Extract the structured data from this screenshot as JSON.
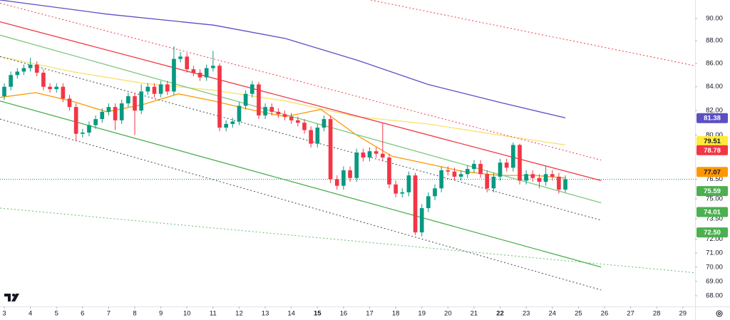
{
  "chart_data": {
    "type": "candlestick",
    "log": true,
    "up_color": "#089981",
    "down_color": "#f23645",
    "xlim": [
      2.836,
      29.47
    ],
    "ylim": [
      67.27,
      91.7
    ],
    "xticks": [
      3,
      4,
      5,
      6,
      7,
      8,
      9,
      10,
      11,
      12,
      13,
      14,
      15,
      16,
      17,
      18,
      19,
      20,
      21,
      22,
      23,
      24,
      25,
      26,
      27,
      28,
      29
    ],
    "xticks_bold": [
      15,
      22
    ],
    "yticks": [
      {
        "value": 90,
        "label": "90.00"
      },
      {
        "value": 88,
        "label": "88.00"
      },
      {
        "value": 86,
        "label": "86.00"
      },
      {
        "value": 84,
        "label": "84.00"
      },
      {
        "value": 82,
        "label": "82.00"
      },
      {
        "value": 80,
        "label": "80.00"
      },
      {
        "value": 76.5,
        "label": "76.50"
      },
      {
        "value": 75,
        "label": "75.00"
      },
      {
        "value": 73.5,
        "label": "73.50"
      },
      {
        "value": 72,
        "label": "72.00"
      },
      {
        "value": 71,
        "label": "71.00"
      },
      {
        "value": 70,
        "label": "70.00"
      },
      {
        "value": 69,
        "label": "69.00"
      },
      {
        "value": 68,
        "label": "68.00"
      }
    ],
    "x": [
      3,
      3.25,
      3.5,
      3.75,
      4,
      4.25,
      4.5,
      4.75,
      5,
      5.25,
      5.5,
      5.75,
      6,
      6.25,
      6.5,
      6.75,
      7,
      7.25,
      7.5,
      7.75,
      8,
      8.25,
      8.5,
      8.75,
      9,
      9.25,
      9.5,
      9.75,
      10,
      10.25,
      10.5,
      10.75,
      11,
      11.25,
      11.5,
      11.75,
      12,
      12.25,
      12.5,
      12.75,
      13,
      13.25,
      13.5,
      13.75,
      14,
      14.25,
      14.5,
      14.75,
      15,
      15.25,
      15.5,
      15.75,
      16,
      16.25,
      16.5,
      16.75,
      17,
      17.25,
      17.5,
      17.75,
      18,
      18.25,
      18.5,
      18.75,
      19,
      19.25,
      19.5,
      19.75,
      20,
      20.25,
      20.5,
      20.75,
      21,
      21.25,
      21.5,
      21.75,
      22,
      22.25,
      22.5,
      22.75,
      23,
      23.25,
      23.5,
      23.75,
      24,
      24.25,
      24.5
    ],
    "open": [
      83.2,
      84.0,
      85.0,
      85.3,
      85.6,
      85.9,
      85.2,
      84.0,
      83.8,
      84.0,
      83.0,
      82.3,
      80.1,
      80.2,
      80.8,
      81.3,
      81.9,
      82.3,
      81.2,
      82.6,
      83.2,
      82.0,
      83.6,
      84.0,
      83.4,
      84.2,
      83.6,
      86.4,
      86.6,
      85.5,
      85.2,
      84.8,
      85.6,
      85.8,
      80.6,
      80.9,
      81.1,
      82.4,
      83.4,
      84.2,
      81.6,
      82.3,
      81.9,
      81.7,
      81.5,
      81.2,
      81.0,
      80.4,
      79.3,
      80.6,
      81.3,
      76.5,
      76.0,
      77.2,
      76.6,
      78.6,
      78.2,
      78.7,
      78.5,
      78.2,
      76.1,
      75.4,
      75.5,
      76.8,
      72.5,
      74.3,
      75.2,
      75.8,
      77.2,
      77.1,
      76.7,
      76.9,
      77.3,
      77.7,
      76.9,
      75.8,
      76.7,
      77.8,
      77.4,
      79.2,
      76.4,
      76.9,
      76.6,
      76.3,
      76.9,
      76.7,
      75.7
    ],
    "high": [
      84.3,
      85.3,
      85.6,
      85.9,
      86.5,
      86.2,
      85.5,
      84.3,
      84.3,
      84.3,
      83.3,
      82.6,
      80.5,
      81.1,
      81.6,
      82.2,
      82.6,
      82.6,
      82.9,
      83.5,
      83.5,
      84.2,
      84.3,
      84.3,
      84.5,
      84.5,
      87.5,
      87.0,
      86.9,
      85.8,
      85.5,
      85.9,
      87.1,
      86.0,
      81.2,
      81.4,
      82.7,
      83.7,
      84.5,
      84.4,
      82.6,
      82.6,
      82.2,
      82.0,
      81.8,
      81.5,
      81.3,
      80.7,
      80.9,
      81.6,
      81.6,
      76.8,
      77.5,
      77.5,
      78.9,
      78.9,
      79.0,
      79.0,
      81.0,
      78.5,
      76.4,
      75.8,
      77.1,
      77.0,
      74.6,
      75.5,
      76.1,
      77.5,
      77.5,
      77.4,
      77.2,
      77.6,
      78.0,
      78.0,
      77.2,
      77.0,
      78.1,
      78.1,
      79.4,
      79.3,
      77.2,
      77.2,
      76.9,
      77.5,
      77.2,
      77.0,
      76.8
    ],
    "low": [
      82.9,
      83.7,
      84.7,
      85.0,
      85.3,
      84.9,
      83.7,
      83.5,
      83.5,
      82.7,
      82.0,
      79.5,
      79.8,
      79.9,
      80.5,
      81.0,
      81.6,
      80.4,
      80.9,
      82.3,
      80.0,
      81.7,
      83.3,
      83.1,
      83.1,
      83.3,
      83.3,
      86.1,
      85.2,
      84.9,
      84.5,
      84.5,
      85.3,
      80.3,
      80.3,
      80.6,
      80.8,
      82.1,
      83.1,
      81.3,
      81.3,
      81.6,
      81.4,
      81.2,
      80.9,
      80.7,
      80.1,
      79.0,
      79.0,
      80.3,
      76.2,
      75.7,
      75.7,
      76.3,
      76.3,
      77.9,
      77.9,
      78.2,
      77.9,
      75.8,
      75.1,
      75.1,
      75.2,
      72.3,
      72.2,
      74.0,
      74.9,
      75.5,
      76.8,
      76.4,
      76.4,
      76.6,
      77.0,
      76.6,
      75.5,
      75.5,
      76.4,
      77.1,
      77.1,
      76.1,
      76.1,
      76.3,
      75.8,
      76.0,
      76.4,
      75.4,
      75.5
    ],
    "close": [
      84.0,
      85.0,
      85.3,
      85.6,
      85.9,
      85.2,
      84.0,
      83.8,
      84.0,
      83.0,
      82.3,
      80.1,
      80.2,
      80.8,
      81.3,
      81.9,
      82.3,
      81.2,
      82.6,
      83.2,
      82.0,
      83.6,
      84.0,
      83.4,
      84.2,
      83.6,
      86.4,
      86.6,
      85.5,
      85.2,
      84.8,
      85.6,
      85.8,
      80.6,
      80.9,
      81.1,
      82.4,
      83.4,
      84.2,
      81.6,
      82.3,
      81.9,
      81.7,
      81.5,
      81.2,
      81.0,
      80.4,
      79.3,
      80.6,
      81.3,
      76.5,
      76.0,
      77.2,
      76.6,
      78.6,
      78.2,
      78.7,
      78.5,
      78.2,
      76.1,
      75.4,
      75.5,
      76.8,
      72.5,
      74.3,
      75.2,
      75.8,
      77.2,
      77.1,
      76.7,
      76.9,
      77.3,
      77.7,
      76.9,
      75.8,
      76.7,
      77.8,
      77.4,
      79.2,
      76.4,
      76.9,
      76.6,
      76.3,
      76.9,
      76.7,
      75.7,
      76.5
    ],
    "lines": [
      {
        "color": "#5b4fc4",
        "dash": "solid",
        "x": [
          2.84,
          6.93,
          11.03,
          13.77,
          16.5,
          19.23,
          21.96,
          24.5
        ],
        "values": [
          91.7,
          90.4,
          89.4,
          88.2,
          86.3,
          84.2,
          82.7,
          81.4
        ]
      },
      {
        "color": "#f7e16b",
        "dash": "solid",
        "x": [
          2.84,
          5.57,
          8.3,
          11.03,
          13.77,
          16.5,
          19.23,
          21.96,
          24.5
        ],
        "values": [
          86.6,
          85.3,
          84.3,
          83.7,
          82.8,
          81.5,
          80.9,
          80.0,
          79.2
        ]
      },
      {
        "color": "#ff9800",
        "dash": "solid",
        "x": [
          2.84,
          4.2,
          5.57,
          6.93,
          8.3,
          9.67,
          11.03,
          12.4,
          13.77,
          15.13,
          16.5,
          17.86,
          19.23,
          20.6,
          21.96,
          23.33,
          24.5
        ],
        "values": [
          83.1,
          83.5,
          82.8,
          81.9,
          82.5,
          83.4,
          82.8,
          82.1,
          81.5,
          82.1,
          80.0,
          78.3,
          77.7,
          77.1,
          76.8,
          76.8,
          76.6
        ]
      },
      {
        "color": "#f23645",
        "dash": "solid",
        "x": [
          2.84,
          25.87
        ],
        "values": [
          89.7,
          76.4
        ]
      },
      {
        "color": "#f23645",
        "dash": "dotted",
        "x": [
          2.84,
          25.87
        ],
        "values": [
          91.4,
          78.0
        ]
      },
      {
        "color": "#f23645",
        "dash": "dotted",
        "x": [
          17.04,
          29.47
        ],
        "values": [
          91.7,
          85.8
        ]
      },
      {
        "color": "#81c784",
        "dash": "solid",
        "x": [
          2.84,
          25.87
        ],
        "values": [
          88.5,
          74.7
        ]
      },
      {
        "color": "#434651",
        "dash": "dotted",
        "x": [
          2.84,
          25.87
        ],
        "values": [
          86.6,
          73.4
        ]
      },
      {
        "color": "#4caf50",
        "dash": "solid",
        "x": [
          2.84,
          25.87
        ],
        "values": [
          82.8,
          70.0
        ]
      },
      {
        "color": "#434651",
        "dash": "dotted",
        "x": [
          2.84,
          25.87
        ],
        "values": [
          81.3,
          68.4
        ]
      },
      {
        "color": "#66bb6a",
        "dash": "dotted",
        "x": [
          2.84,
          29.47
        ],
        "values": [
          74.3,
          69.6
        ]
      }
    ],
    "last_price": 76.5,
    "last_price_color": "#089981",
    "price_labels": [
      {
        "value": 81.38,
        "label": "81.38",
        "color": "#5b4fc4",
        "text_color": "#ffffff"
      },
      {
        "value": 79.51,
        "label": "79.51",
        "color": "#ffeb3b",
        "text_color": "#131722"
      },
      {
        "value": 78.78,
        "label": "78.78",
        "color": "#f23645",
        "text_color": "#ffffff"
      },
      {
        "value": 77.07,
        "label": "77.07",
        "color": "#ff9800",
        "text_color": "#131722"
      },
      {
        "value": 75.59,
        "label": "75.59",
        "color": "#4caf50",
        "text_color": "#ffffff"
      },
      {
        "value": 74.01,
        "label": "74.01",
        "color": "#4caf50",
        "text_color": "#ffffff"
      },
      {
        "value": 72.5,
        "label": "72.50",
        "color": "#4caf50",
        "text_color": "#ffffff"
      }
    ]
  }
}
